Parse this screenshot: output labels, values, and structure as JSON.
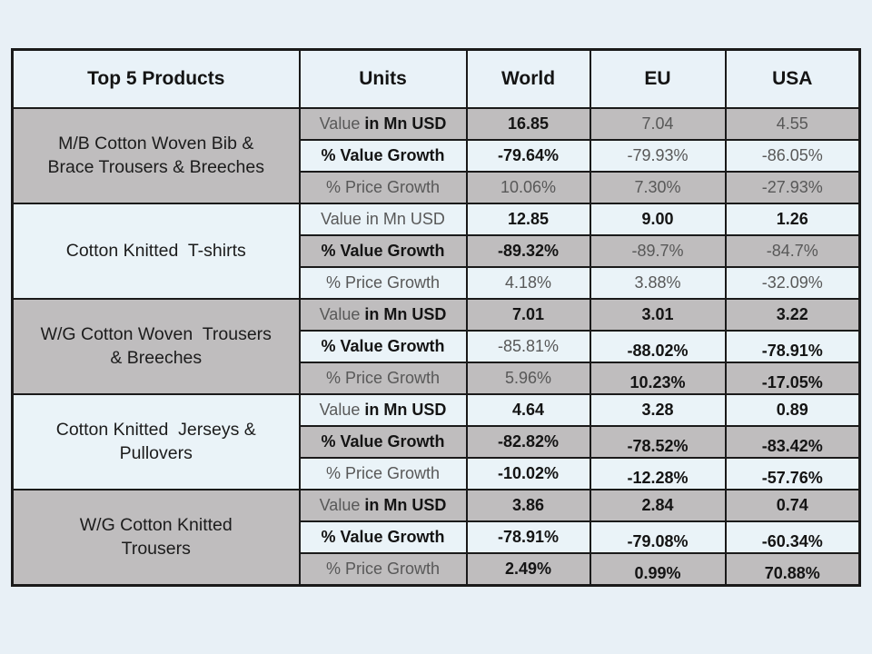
{
  "colors": {
    "slide_background": "#e8f0f6",
    "row_gray": "#bfbdbe",
    "row_light": "#eaf3f8",
    "border": "#1a1a1a",
    "text_dark": "#141414",
    "text_gray": "#585858"
  },
  "table": {
    "header": [
      "Top 5 Products",
      "Units",
      "World",
      "EU",
      "USA"
    ],
    "products": [
      {
        "name": "M/B Cotton Woven Bib &\nBrace Trousers & Breeches",
        "rows": [
          {
            "unit": [
              {
                "text": "Value ",
                "style": "gray"
              },
              {
                "text": "in Mn USD",
                "style": "bold"
              }
            ],
            "values": [
              {
                "text": "16.85",
                "style": "bold"
              },
              {
                "text": "7.04",
                "style": "gray"
              },
              {
                "text": "4.55",
                "style": "gray"
              }
            ]
          },
          {
            "unit": [
              {
                "text": "% Value Growth",
                "style": "bold"
              }
            ],
            "values": [
              {
                "text": "-79.64%",
                "style": "bold"
              },
              {
                "text": "-79.93%",
                "style": "gray"
              },
              {
                "text": "-86.05%",
                "style": "gray"
              }
            ]
          },
          {
            "unit": [
              {
                "text": "% Price Growth",
                "style": "gray"
              }
            ],
            "values": [
              {
                "text": "10.06%",
                "style": "gray"
              },
              {
                "text": "7.30%",
                "style": "gray"
              },
              {
                "text": "-27.93%",
                "style": "gray"
              }
            ]
          }
        ]
      },
      {
        "name": "Cotton Knitted  T-shirts",
        "rows": [
          {
            "unit": [
              {
                "text": "Value in Mn USD",
                "style": "gray"
              }
            ],
            "values": [
              {
                "text": "12.85",
                "style": "bold"
              },
              {
                "text": "9.00",
                "style": "bold"
              },
              {
                "text": "1.26",
                "style": "bold"
              }
            ]
          },
          {
            "unit": [
              {
                "text": "% Value Growth",
                "style": "bold"
              }
            ],
            "values": [
              {
                "text": "-89.32%",
                "style": "bold"
              },
              {
                "text": "-89.7%",
                "style": "gray"
              },
              {
                "text": "-84.7%",
                "style": "gray"
              }
            ]
          },
          {
            "unit": [
              {
                "text": "% Price Growth",
                "style": "gray"
              }
            ],
            "values": [
              {
                "text": "4.18%",
                "style": "gray"
              },
              {
                "text": "3.88%",
                "style": "gray"
              },
              {
                "text": "-32.09%",
                "style": "gray"
              }
            ]
          }
        ]
      },
      {
        "name": "W/G Cotton Woven  Trousers\n& Breeches",
        "rows": [
          {
            "unit": [
              {
                "text": "Value ",
                "style": "gray"
              },
              {
                "text": "in Mn USD",
                "style": "bold"
              }
            ],
            "values": [
              {
                "text": "7.01",
                "style": "bold"
              },
              {
                "text": "3.01",
                "style": "bold"
              },
              {
                "text": "3.22",
                "style": "bold"
              }
            ]
          },
          {
            "unit": [
              {
                "text": "% Value Growth",
                "style": "bold"
              }
            ],
            "values": [
              {
                "text": "-85.81%",
                "style": "gray"
              },
              {
                "text": "-88.02%",
                "style": "bold low"
              },
              {
                "text": "-78.91%",
                "style": "bold low"
              }
            ]
          },
          {
            "unit": [
              {
                "text": "% Price Growth",
                "style": "gray"
              }
            ],
            "values": [
              {
                "text": "5.96%",
                "style": "gray"
              },
              {
                "text": "10.23%",
                "style": "bold low"
              },
              {
                "text": "-17.05%",
                "style": "bold low"
              }
            ]
          }
        ]
      },
      {
        "name": "Cotton Knitted  Jerseys &\nPullovers",
        "rows": [
          {
            "unit": [
              {
                "text": "Value ",
                "style": "gray"
              },
              {
                "text": "in Mn USD",
                "style": "bold"
              }
            ],
            "values": [
              {
                "text": "4.64",
                "style": "bold"
              },
              {
                "text": "3.28",
                "style": "bold"
              },
              {
                "text": "0.89",
                "style": "bold"
              }
            ]
          },
          {
            "unit": [
              {
                "text": "% Value Growth",
                "style": "bold"
              }
            ],
            "values": [
              {
                "text": "-82.82%",
                "style": "bold"
              },
              {
                "text": "-78.52%",
                "style": "bold low"
              },
              {
                "text": "-83.42%",
                "style": "bold low"
              }
            ]
          },
          {
            "unit": [
              {
                "text": "% Price Growth",
                "style": "gray"
              }
            ],
            "values": [
              {
                "text": "-10.02%",
                "style": "bold"
              },
              {
                "text": "-12.28%",
                "style": "bold low"
              },
              {
                "text": "-57.76%",
                "style": "bold low"
              }
            ]
          }
        ]
      },
      {
        "name": "W/G Cotton Knitted\nTrousers",
        "rows": [
          {
            "unit": [
              {
                "text": "Value ",
                "style": "gray"
              },
              {
                "text": "in Mn USD",
                "style": "bold"
              }
            ],
            "values": [
              {
                "text": "3.86",
                "style": "bold"
              },
              {
                "text": "2.84",
                "style": "bold"
              },
              {
                "text": "0.74",
                "style": "bold"
              }
            ]
          },
          {
            "unit": [
              {
                "text": "% Value Growth",
                "style": "bold"
              }
            ],
            "values": [
              {
                "text": "-78.91%",
                "style": "bold"
              },
              {
                "text": "-79.08%",
                "style": "bold low"
              },
              {
                "text": "-60.34%",
                "style": "bold low"
              }
            ]
          },
          {
            "unit": [
              {
                "text": "% Price Growth",
                "style": "gray"
              }
            ],
            "values": [
              {
                "text": "2.49%",
                "style": "bold"
              },
              {
                "text": "0.99%",
                "style": "bold low"
              },
              {
                "text": "70.88%",
                "style": "bold low"
              }
            ]
          }
        ]
      }
    ]
  }
}
